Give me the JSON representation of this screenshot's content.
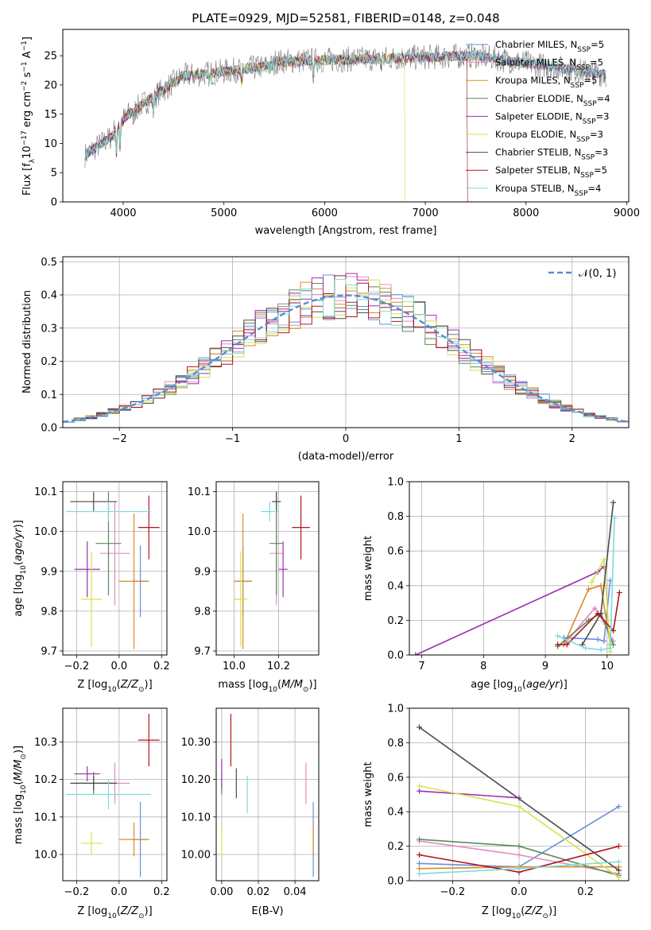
{
  "title": "PLATE=0929, MJD=52581, FIBERID=0148, z=0.048",
  "colors": {
    "chab_miles": "#6b8fd9",
    "salp_miles": "#e48bc2",
    "krou_miles": "#d98a2c",
    "chab_elodie": "#5a8a5a",
    "salp_elodie": "#9a2fb0",
    "krou_elodie": "#d4e44a",
    "chab_stelib": "#4a4a4a",
    "salp_stelib": "#b0161e",
    "krou_stelib": "#7fd9dd",
    "normal": "#5b8ad6",
    "data": "#7a7a7a"
  },
  "legend_spectrum": [
    {
      "text": "Chabrier MILES, N",
      "sub": "SSP",
      "val": "=5",
      "color": "chab_miles"
    },
    {
      "text": "Salpeter MILES, N",
      "sub": "SSP",
      "val": "=5",
      "color": "salp_miles"
    },
    {
      "text": "Kroupa MILES, N",
      "sub": "SSP",
      "val": "=5",
      "color": "krou_miles"
    },
    {
      "text": "Chabrier ELODIE, N",
      "sub": "SSP",
      "val": "=4",
      "color": "chab_elodie"
    },
    {
      "text": "Salpeter ELODIE, N",
      "sub": "SSP",
      "val": "=3",
      "color": "salp_elodie"
    },
    {
      "text": "Kroupa ELODIE, N",
      "sub": "SSP",
      "val": "=3",
      "color": "krou_elodie"
    },
    {
      "text": "Chabrier STELIB, N",
      "sub": "SSP",
      "val": "=3",
      "color": "chab_stelib"
    },
    {
      "text": "Salpeter STELIB, N",
      "sub": "SSP",
      "val": "=5",
      "color": "salp_stelib"
    },
    {
      "text": "Kroupa STELIB, N",
      "sub": "SSP",
      "val": "=4",
      "color": "krou_stelib"
    }
  ],
  "legend_hist": "𝒩(0, 1)",
  "chart_data": [
    {
      "id": "spectrum",
      "type": "line",
      "xlabel": "wavelength [Angstrom, rest frame]",
      "ylabel": "Flux [f",
      "ylabel_parts": [
        "Flux [f",
        "λ",
        "10",
        "−17",
        " erg cm",
        "−2",
        " s",
        "−1",
        " A",
        "−1",
        "]"
      ],
      "xlim": [
        3400,
        9020
      ],
      "ylim": [
        0,
        29.5
      ],
      "xticks": [
        4000,
        5000,
        6000,
        7000,
        8000,
        9000
      ],
      "yticks": [
        0,
        5,
        10,
        15,
        20,
        25
      ],
      "x_start": 3620,
      "x_end": 8800,
      "model_cuts": {
        "krou_elodie": [
          3900,
          6800
        ],
        "salp_stelib": [
          3620,
          7420
        ]
      }
    },
    {
      "id": "residuals",
      "type": "bar",
      "xlabel": "(data-model)/error",
      "ylabel": "Normed distribution",
      "xlim": [
        -2.5,
        2.5
      ],
      "ylim": [
        0,
        0.515
      ],
      "xticks": [
        -2,
        -1,
        0,
        1,
        2
      ],
      "yticks": [
        0.0,
        0.1,
        0.2,
        0.3,
        0.4,
        0.5
      ],
      "bin_width": 0.1
    },
    {
      "id": "age_vs_Z",
      "type": "scatter",
      "xlabel": "Z [log",
      "ylabel": "age  [log",
      "xlim": [
        -0.265,
        0.225
      ],
      "ylim": [
        9.69,
        10.125
      ],
      "xticks": [
        -0.2,
        0.0,
        0.2
      ],
      "yticks": [
        9.7,
        9.8,
        9.9,
        10.0,
        10.1
      ],
      "points": [
        {
          "s": "chab_miles",
          "x": 0.1,
          "xe": 0.04,
          "y": 9.875,
          "ye": 0.09
        },
        {
          "s": "salp_miles",
          "x": -0.02,
          "xe": 0.07,
          "y": 9.945,
          "ye": 0.13
        },
        {
          "s": "krou_miles",
          "x": 0.07,
          "xe": 0.07,
          "y": 9.875,
          "ye": 0.17
        },
        {
          "s": "chab_elodie",
          "x": -0.05,
          "xe": 0.06,
          "y": 9.97,
          "ye": 0.13
        },
        {
          "s": "salp_elodie",
          "x": -0.15,
          "xe": 0.06,
          "y": 9.905,
          "ye": 0.07
        },
        {
          "s": "krou_elodie",
          "x": -0.13,
          "xe": 0.05,
          "y": 9.83,
          "ye": 0.12
        },
        {
          "s": "chab_stelib",
          "x": -0.12,
          "xe": 0.11,
          "y": 10.075,
          "ye": 0.025
        },
        {
          "s": "salp_stelib",
          "x": 0.14,
          "xe": 0.05,
          "y": 10.01,
          "ye": 0.08
        },
        {
          "s": "krou_stelib",
          "x": -0.05,
          "xe": 0.2,
          "y": 10.05,
          "ye": 0.025
        }
      ]
    },
    {
      "id": "age_vs_mass",
      "type": "scatter",
      "xlabel": "mass [log",
      "ylabel": "",
      "xlim": [
        9.92,
        10.38
      ],
      "ylim": [
        9.69,
        10.125
      ],
      "xticks": [
        10.0,
        10.2
      ],
      "yticks": [
        9.7,
        9.8,
        9.9,
        10.0,
        10.1
      ],
      "points": [
        {
          "s": "chab_miles",
          "x": 10.04,
          "xe": 0.04,
          "y": 9.875,
          "ye": 0.09
        },
        {
          "s": "salp_miles",
          "x": 10.19,
          "xe": 0.03,
          "y": 9.945,
          "ye": 0.13
        },
        {
          "s": "krou_miles",
          "x": 10.04,
          "xe": 0.04,
          "y": 9.875,
          "ye": 0.17
        },
        {
          "s": "chab_elodie",
          "x": 10.19,
          "xe": 0.03,
          "y": 9.97,
          "ye": 0.13
        },
        {
          "s": "salp_elodie",
          "x": 10.22,
          "xe": 0.02,
          "y": 9.905,
          "ye": 0.07
        },
        {
          "s": "krou_elodie",
          "x": 10.03,
          "xe": 0.03,
          "y": 9.83,
          "ye": 0.12
        },
        {
          "s": "chab_stelib",
          "x": 10.19,
          "xe": 0.02,
          "y": 10.075,
          "ye": 0.025
        },
        {
          "s": "salp_stelib",
          "x": 10.3,
          "xe": 0.04,
          "y": 10.01,
          "ye": 0.08
        },
        {
          "s": "krou_stelib",
          "x": 10.16,
          "xe": 0.04,
          "y": 10.05,
          "ye": 0.025
        }
      ]
    },
    {
      "id": "weight_vs_age",
      "type": "line",
      "xlabel": "age  [log",
      "ylabel": "mass weight",
      "xlim": [
        6.8,
        10.35
      ],
      "ylim": [
        0,
        1.0
      ],
      "xticks": [
        7,
        8,
        9,
        10
      ],
      "yticks": [
        0.0,
        0.2,
        0.4,
        0.6,
        0.8,
        1.0
      ],
      "series": [
        {
          "s": "chab_miles",
          "x": [
            9.3,
            9.85,
            9.95,
            10.05
          ],
          "y": [
            0.1,
            0.09,
            0.08,
            0.43
          ]
        },
        {
          "s": "salp_miles",
          "x": [
            9.3,
            9.8,
            9.95,
            10.1
          ],
          "y": [
            0.06,
            0.27,
            0.19,
            0.08
          ]
        },
        {
          "s": "krou_miles",
          "x": [
            9.3,
            9.7,
            9.9,
            10.05
          ],
          "y": [
            0.06,
            0.38,
            0.4,
            0.06
          ]
        },
        {
          "s": "chab_elodie",
          "x": [
            9.2,
            9.7,
            9.9,
            10.1
          ],
          "y": [
            0.05,
            0.2,
            0.24,
            0.06
          ]
        },
        {
          "s": "salp_elodie",
          "x": [
            6.9,
            9.85,
            9.95
          ],
          "y": [
            0.0,
            0.48,
            0.51
          ]
        },
        {
          "s": "krou_elodie",
          "x": [
            9.75,
            9.95,
            10.05
          ],
          "y": [
            0.42,
            0.55,
            0.02
          ]
        },
        {
          "s": "chab_stelib",
          "x": [
            9.6,
            9.9,
            10.1
          ],
          "y": [
            0.06,
            0.24,
            0.88
          ]
        },
        {
          "s": "salp_stelib",
          "x": [
            9.2,
            9.35,
            9.85,
            10.1,
            10.2
          ],
          "y": [
            0.06,
            0.06,
            0.24,
            0.14,
            0.36
          ]
        },
        {
          "s": "krou_stelib",
          "x": [
            9.2,
            9.65,
            9.9,
            10.05,
            10.12
          ],
          "y": [
            0.11,
            0.04,
            0.03,
            0.04,
            0.79
          ]
        }
      ]
    },
    {
      "id": "mass_vs_Z",
      "type": "scatter",
      "xlabel": "Z [log",
      "ylabel": "mass [log",
      "xlim": [
        -0.265,
        0.225
      ],
      "ylim": [
        9.93,
        10.39
      ],
      "xticks": [
        -0.2,
        0.0,
        0.2
      ],
      "yticks": [
        10.0,
        10.1,
        10.2,
        10.3
      ],
      "points": [
        {
          "s": "chab_miles",
          "x": 0.1,
          "xe": 0.04,
          "y": 10.04,
          "ye": 0.1
        },
        {
          "s": "salp_miles",
          "x": -0.02,
          "xe": 0.07,
          "y": 10.19,
          "ye": 0.055
        },
        {
          "s": "krou_miles",
          "x": 0.07,
          "xe": 0.07,
          "y": 10.04,
          "ye": 0.045
        },
        {
          "s": "chab_elodie",
          "x": -0.12,
          "xe": 0.09,
          "y": 10.19,
          "ye": 0.03
        },
        {
          "s": "salp_elodie",
          "x": -0.15,
          "xe": 0.06,
          "y": 10.215,
          "ye": 0.02
        },
        {
          "s": "krou_elodie",
          "x": -0.13,
          "xe": 0.05,
          "y": 10.03,
          "ye": 0.03
        },
        {
          "s": "chab_stelib",
          "x": -0.12,
          "xe": 0.11,
          "y": 10.19,
          "ye": 0.02
        },
        {
          "s": "salp_stelib",
          "x": 0.14,
          "xe": 0.05,
          "y": 10.305,
          "ye": 0.07
        },
        {
          "s": "krou_stelib",
          "x": -0.05,
          "xe": 0.2,
          "y": 10.16,
          "ye": 0.04
        }
      ]
    },
    {
      "id": "mass_vs_ebv",
      "type": "scatter",
      "xlabel": "E(B-V)",
      "ylabel": "",
      "xlim": [
        -0.003,
        0.053
      ],
      "ylim": [
        9.93,
        10.39
      ],
      "xticks": [
        0.0,
        0.02,
        0.04
      ],
      "yticks": [
        10.0,
        10.1,
        10.2,
        10.3
      ],
      "points": [
        {
          "s": "chab_miles",
          "x": 0.05,
          "xe": 0,
          "y": 10.04,
          "ye": 0.1
        },
        {
          "s": "salp_miles",
          "x": 0.046,
          "xe": 0,
          "y": 10.19,
          "ye": 0.055
        },
        {
          "s": "krou_miles",
          "x": 0.05,
          "xe": 0,
          "y": 10.04,
          "ye": 0.045
        },
        {
          "s": "chab_elodie",
          "x": 0.0,
          "xe": 0,
          "y": 10.19,
          "ye": 0.03
        },
        {
          "s": "salp_elodie",
          "x": 0.0,
          "xe": 0,
          "y": 10.215,
          "ye": 0.04
        },
        {
          "s": "krou_elodie",
          "x": 0.0,
          "xe": 0,
          "y": 10.03,
          "ye": 0.04
        },
        {
          "s": "chab_stelib",
          "x": 0.008,
          "xe": 0,
          "y": 10.19,
          "ye": 0.04
        },
        {
          "s": "salp_stelib",
          "x": 0.005,
          "xe": 0,
          "y": 10.305,
          "ye": 0.07
        },
        {
          "s": "krou_stelib",
          "x": 0.014,
          "xe": 0,
          "y": 10.16,
          "ye": 0.05
        }
      ]
    },
    {
      "id": "weight_vs_Z",
      "type": "line",
      "xlabel": "Z [log",
      "ylabel": "mass weight",
      "xlim": [
        -0.33,
        0.33
      ],
      "ylim": [
        0,
        1.0
      ],
      "xticks": [
        -0.2,
        0.0,
        0.2
      ],
      "yticks": [
        0.0,
        0.2,
        0.4,
        0.6,
        0.8,
        1.0
      ],
      "series": [
        {
          "s": "chab_miles",
          "x": [
            -0.3,
            0.0,
            0.3
          ],
          "y": [
            0.1,
            0.08,
            0.43
          ]
        },
        {
          "s": "salp_miles",
          "x": [
            -0.3,
            0.0,
            0.3
          ],
          "y": [
            0.23,
            0.15,
            0.04
          ]
        },
        {
          "s": "krou_miles",
          "x": [
            -0.3,
            0.0,
            0.3
          ],
          "y": [
            0.07,
            0.08,
            0.08
          ]
        },
        {
          "s": "chab_elodie",
          "x": [
            -0.3,
            0.0,
            0.3
          ],
          "y": [
            0.24,
            0.2,
            0.03
          ]
        },
        {
          "s": "salp_elodie",
          "x": [
            -0.3,
            0.0
          ],
          "y": [
            0.52,
            0.48
          ]
        },
        {
          "s": "krou_elodie",
          "x": [
            -0.3,
            0.0,
            0.3
          ],
          "y": [
            0.55,
            0.43,
            0.02
          ]
        },
        {
          "s": "chab_stelib",
          "x": [
            -0.3,
            0.3
          ],
          "y": [
            0.89,
            0.06
          ]
        },
        {
          "s": "salp_stelib",
          "x": [
            -0.3,
            0.0,
            0.3
          ],
          "y": [
            0.15,
            0.05,
            0.2
          ]
        },
        {
          "s": "krou_stelib",
          "x": [
            -0.3,
            0.0,
            0.3
          ],
          "y": [
            0.04,
            0.07,
            0.11
          ]
        }
      ]
    }
  ]
}
